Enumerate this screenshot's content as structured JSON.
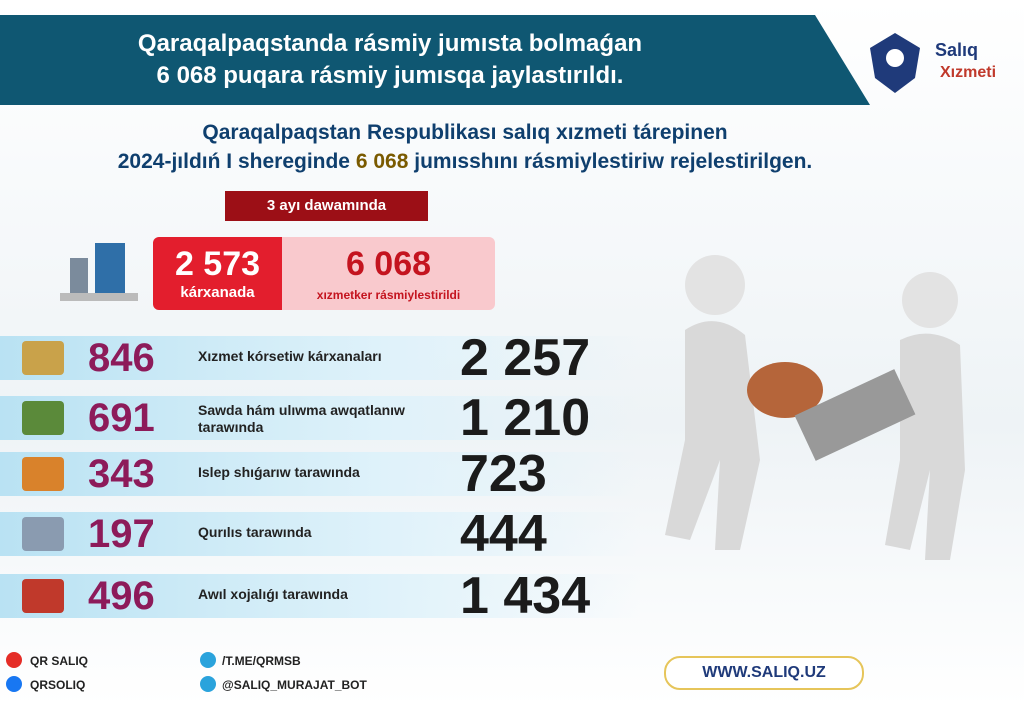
{
  "header": {
    "title_lines": [
      "Qaraqalpaqstanda rásmiy jumısta bolmaǵan",
      "6 068 puqara rásmiy jumısqa jaylastırıldı."
    ]
  },
  "logo": {
    "name": "Salıq",
    "sub": "Xızmeti"
  },
  "subtitle": {
    "line1": "Qaraqalpaqstan Respublikası salıq xızmeti tárepinen",
    "line2_start": "2024-jıldıń I shereginde",
    "line2_number": "6 068",
    "line2_end": "jumısshını rásmiylestiriw rejelestirilgen."
  },
  "summary": {
    "period": "3 ayı dawamında",
    "enterprises": "2 573",
    "enterprises_label": "kárxanada",
    "workers": "6 068",
    "workers_label": "xızmetker rásmiylestirildi"
  },
  "rows": [
    {
      "count": "846",
      "label": "Xızmet kórsetiw kárxanaları",
      "workers": "2 257"
    },
    {
      "count": "691",
      "label": "Sawda hám ulıwma awqatlanıw tarawında",
      "workers": "1 210"
    },
    {
      "count": "343",
      "label": "Islep shıǵarıw tarawında",
      "workers": "723"
    },
    {
      "count": "197",
      "label": "Qurılıs tarawında",
      "workers": "444"
    },
    {
      "count": "496",
      "label": "Awıl xojalıǵı tarawında",
      "workers": "1 434"
    }
  ],
  "footer": {
    "youtube": "QR SALIQ",
    "facebook": "QRSOLIQ",
    "telegram1": "/T.ME/QRMSB",
    "telegram2": "@SALIQ_MURAJAT_BOT",
    "website": "WWW.SALIQ.UZ"
  }
}
